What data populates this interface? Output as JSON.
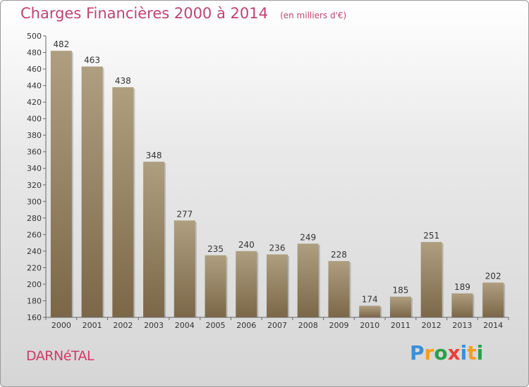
{
  "chart_data": {
    "type": "bar",
    "title": "Charges Financières 2000 à 2014",
    "subtitle": "(en milliers d'€)",
    "categories": [
      "2000",
      "2001",
      "2002",
      "2003",
      "2004",
      "2005",
      "2006",
      "2007",
      "2008",
      "2009",
      "2010",
      "2011",
      "2012",
      "2013",
      "2014"
    ],
    "values": [
      482,
      463,
      438,
      348,
      277,
      235,
      240,
      236,
      249,
      228,
      174,
      185,
      251,
      189,
      202
    ],
    "ylim": [
      160,
      500
    ],
    "yticks": [
      160,
      180,
      200,
      220,
      240,
      260,
      280,
      300,
      320,
      340,
      360,
      380,
      400,
      420,
      440,
      460,
      480,
      500
    ],
    "xlabel": "",
    "ylabel": "",
    "grid": false,
    "bar_color_top": "#ae9f80",
    "bar_color_bottom": "#7b6748"
  },
  "footer": {
    "city": "DARNéTAL",
    "logo_letters": [
      "P",
      "r",
      "o",
      "x",
      "i",
      "t",
      "i"
    ],
    "logo_colors": [
      "#3a8fd8",
      "#f0a020",
      "#2aa04a",
      "#e8403a",
      "#3a8fd8",
      "#f0a020",
      "#2aa04a"
    ]
  }
}
